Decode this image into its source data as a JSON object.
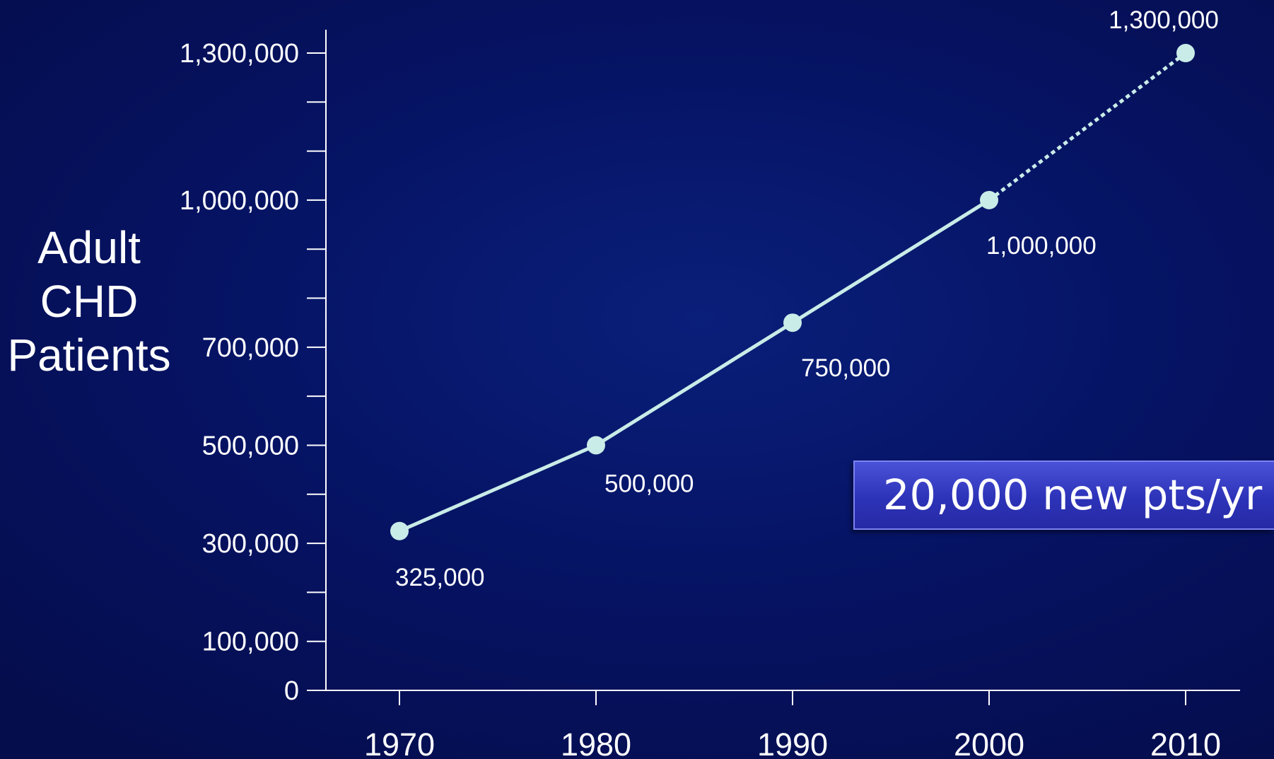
{
  "chart_data": {
    "type": "line",
    "title": "",
    "xlabel": "",
    "ylabel": [
      "Adult",
      "CHD",
      "Patients"
    ],
    "x": [
      1970,
      1980,
      1990,
      2000,
      2010
    ],
    "x_tick_labels": [
      "1970",
      "1980",
      "1990",
      "2000",
      "2010"
    ],
    "ylim": [
      0,
      1300000
    ],
    "y_tick_labels": [
      {
        "value": 0,
        "label": "0"
      },
      {
        "value": 100000,
        "label": "100,000"
      },
      {
        "value": 300000,
        "label": "300,000"
      },
      {
        "value": 500000,
        "label": "500,000"
      },
      {
        "value": 700000,
        "label": "700,000"
      },
      {
        "value": 1000000,
        "label": "1,000,000"
      },
      {
        "value": 1300000,
        "label": "1,300,000"
      }
    ],
    "y_minor_ticks": [
      200000,
      400000,
      600000,
      800000,
      900000,
      1100000,
      1200000
    ],
    "series": [
      {
        "values": [
          325000,
          500000,
          750000,
          1000000,
          1300000
        ],
        "data_labels": [
          "325,000",
          "500,000",
          "750,000",
          "1,000,000",
          "1,300,000"
        ],
        "projected_from_index": 3,
        "color": "#c9ece8"
      }
    ],
    "annotation": "20,000 new pts/yr",
    "grid": false,
    "legend": "none"
  },
  "colors": {
    "background": "#061466",
    "axis": "#ffffff",
    "line": "#c9ece8",
    "callout": "#2d33b8"
  }
}
